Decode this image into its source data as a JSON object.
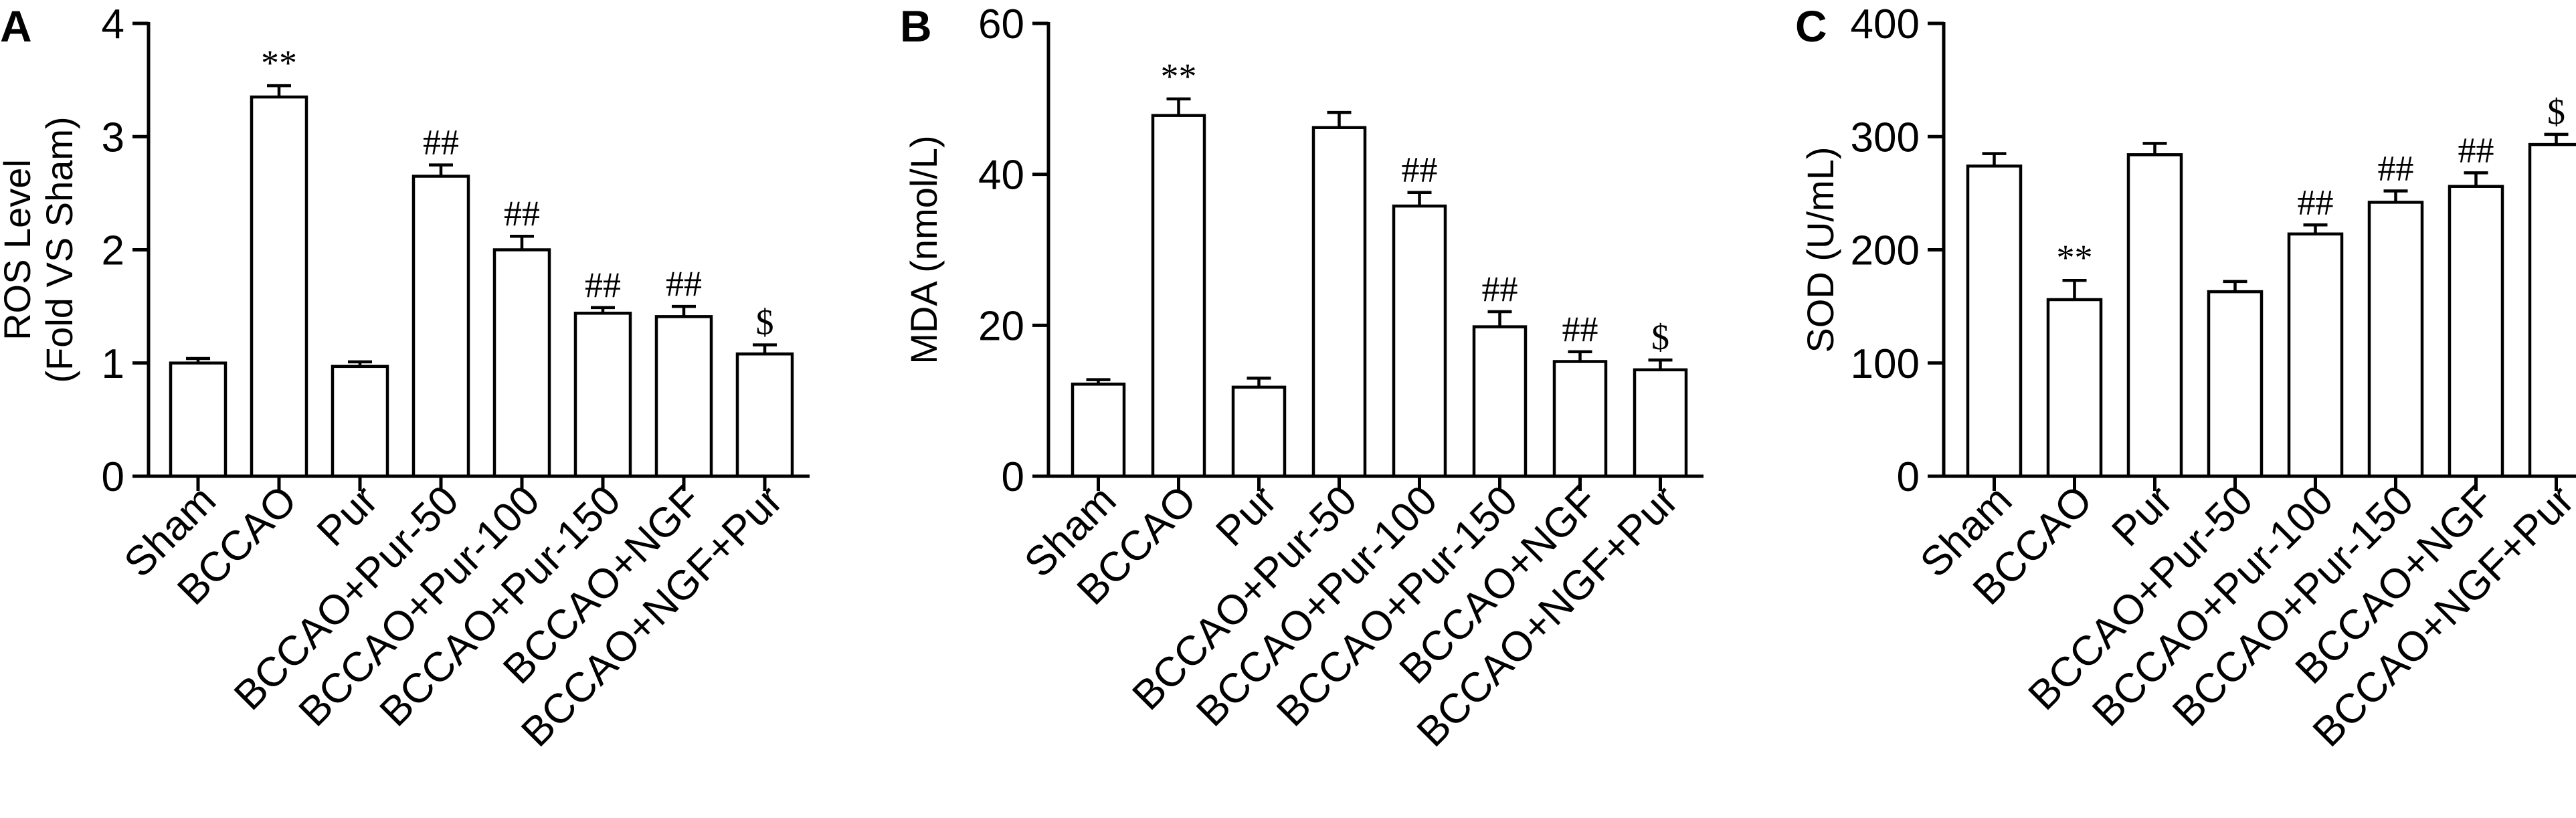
{
  "chart_data": [
    {
      "type": "bar",
      "panel": "A",
      "ylabel": [
        "ROS Level",
        "(Fold VS Sham)"
      ],
      "ylim": [
        0,
        4
      ],
      "yticks": [
        0,
        1,
        2,
        3,
        4
      ],
      "categories": [
        "Sham",
        "BCCAO",
        "Pur",
        "BCCAO+Pur-50",
        "BCCAO+Pur-100",
        "BCCAO+Pur-150",
        "BCCAO+NGF",
        "BCCAO+NGF+Pur"
      ],
      "values": [
        1.0,
        3.35,
        0.97,
        2.65,
        2.0,
        1.44,
        1.41,
        1.08
      ],
      "errors": [
        0.04,
        0.1,
        0.04,
        0.1,
        0.12,
        0.05,
        0.09,
        0.08
      ],
      "annotations": [
        "",
        "**",
        "",
        "##",
        "##",
        "##",
        "##",
        "$"
      ]
    },
    {
      "type": "bar",
      "panel": "B",
      "ylabel": [
        "MDA (nmol/L)"
      ],
      "ylim": [
        0,
        60
      ],
      "yticks": [
        0,
        20,
        40,
        60
      ],
      "categories": [
        "Sham",
        "BCCAO",
        "Pur",
        "BCCAO+Pur-50",
        "BCCAO+Pur-100",
        "BCCAO+Pur-150",
        "BCCAO+NGF",
        "BCCAO+NGF+Pur"
      ],
      "values": [
        12.2,
        47.8,
        11.8,
        46.2,
        35.8,
        19.8,
        15.2,
        14.1
      ],
      "errors": [
        0.6,
        2.2,
        1.2,
        2.0,
        1.8,
        2.0,
        1.3,
        1.3
      ],
      "annotations": [
        "",
        "**",
        "",
        "",
        "##",
        "##",
        "##",
        "$"
      ]
    },
    {
      "type": "bar",
      "panel": "C",
      "ylabel": [
        "SOD (U/mL)"
      ],
      "ylim": [
        0,
        400
      ],
      "yticks": [
        0,
        100,
        200,
        300,
        400
      ],
      "categories": [
        "Sham",
        "BCCAO",
        "Pur",
        "BCCAO+Pur-50",
        "BCCAO+Pur-100",
        "BCCAO+Pur-150",
        "BCCAO+NGF",
        "BCCAO+NGF+Pur"
      ],
      "values": [
        274,
        156,
        284,
        163,
        214,
        242,
        256,
        293
      ],
      "errors": [
        11,
        17,
        10,
        9,
        8,
        10,
        12,
        9
      ],
      "annotations": [
        "",
        "**",
        "",
        "",
        "##",
        "##",
        "##",
        "$"
      ]
    }
  ]
}
